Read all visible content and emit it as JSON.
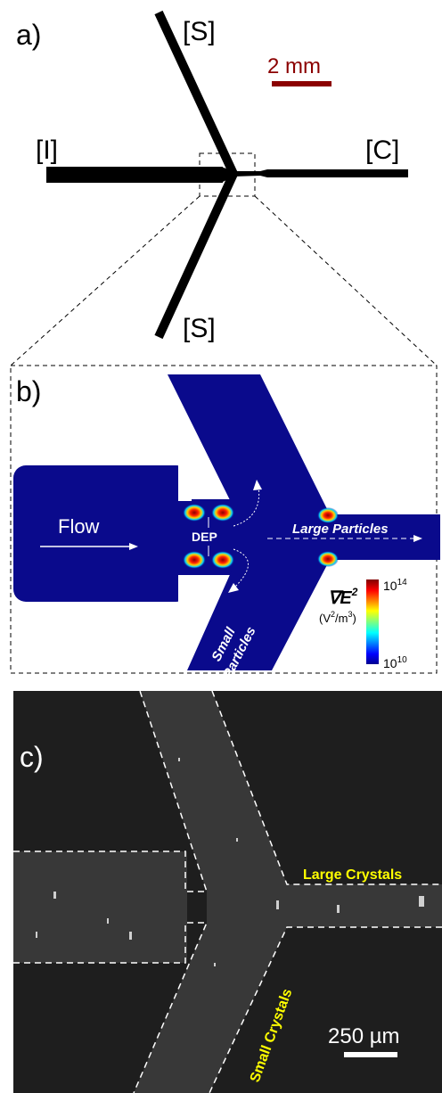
{
  "panel_a": {
    "label": "a)",
    "side_inlet_top": "[S]",
    "side_inlet_bottom": "[S]",
    "inlet": "[I]",
    "outlet": "[C]",
    "scale_bar": "2 mm"
  },
  "panel_b": {
    "label": "b)",
    "flow": "Flow",
    "dep": "DEP",
    "large": "Large Particles",
    "small_line1": "Small",
    "small_line2": "Particles",
    "colorbar": {
      "symbol": "∇E",
      "symbol_exp": "2",
      "unit_open": "(V",
      "unit_exp1": "2",
      "unit_mid": "/m",
      "unit_exp2": "3",
      "unit_close": ")",
      "max_base": "10",
      "max_exp": "14",
      "min_base": "10",
      "min_exp": "10"
    }
  },
  "panel_c": {
    "label": "c)",
    "large": "Large Crystals",
    "small": "Small Crystals",
    "scale_bar": "250 µm"
  }
}
